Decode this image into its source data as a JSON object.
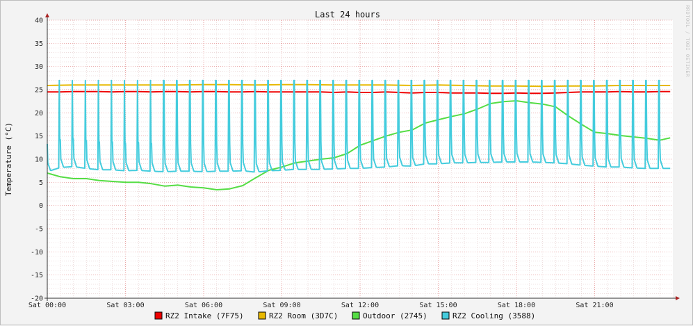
{
  "chart_data": {
    "type": "line",
    "title": "Last 24 hours",
    "ylabel": "Temperature (°C)",
    "xlabel": "",
    "watermark": "RRDTOOL / TOBI OETIKER",
    "ylim": [
      -20,
      40
    ],
    "yticks": [
      40,
      35,
      30,
      25,
      20,
      15,
      10,
      5,
      0,
      -5,
      -10,
      -15,
      -20
    ],
    "xlim_hours": [
      0,
      24
    ],
    "xticks": [
      {
        "hour": 0,
        "label": "Sat 00:00"
      },
      {
        "hour": 3,
        "label": "Sat 03:00"
      },
      {
        "hour": 6,
        "label": "Sat 06:00"
      },
      {
        "hour": 9,
        "label": "Sat 09:00"
      },
      {
        "hour": 12,
        "label": "Sat 12:00"
      },
      {
        "hour": 15,
        "label": "Sat 15:00"
      },
      {
        "hour": 18,
        "label": "Sat 18:00"
      },
      {
        "hour": 21,
        "label": "Sat 21:00"
      }
    ],
    "grid": true,
    "legend_position": "bottom",
    "series": [
      {
        "name": "RZ2 Intake (7F75)",
        "color": "#ee0000",
        "x": [
          0.0,
          0.5,
          1.0,
          1.5,
          2.0,
          2.5,
          3.0,
          3.5,
          4.0,
          4.5,
          5.0,
          5.5,
          6.0,
          6.5,
          7.0,
          7.5,
          8.0,
          8.5,
          9.0,
          9.5,
          10.0,
          10.5,
          11.0,
          11.5,
          12.0,
          12.5,
          13.0,
          13.5,
          14.0,
          14.5,
          15.0,
          15.5,
          16.0,
          16.5,
          17.0,
          17.5,
          18.0,
          18.5,
          19.0,
          19.5,
          20.0,
          20.5,
          21.0,
          21.5,
          22.0,
          22.5,
          23.0,
          23.5,
          23.9
        ],
        "y": [
          24.5,
          24.5,
          24.6,
          24.6,
          24.6,
          24.5,
          24.6,
          24.6,
          24.5,
          24.6,
          24.6,
          24.5,
          24.6,
          24.6,
          24.5,
          24.5,
          24.6,
          24.5,
          24.5,
          24.5,
          24.5,
          24.5,
          24.4,
          24.5,
          24.4,
          24.4,
          24.5,
          24.4,
          24.3,
          24.4,
          24.4,
          24.3,
          24.3,
          24.3,
          24.2,
          24.2,
          24.3,
          24.2,
          24.2,
          24.3,
          24.4,
          24.5,
          24.5,
          24.5,
          24.6,
          24.5,
          24.5,
          24.6,
          24.6
        ]
      },
      {
        "name": "RZ2 Room (3D7C)",
        "color": "#e8b800",
        "x": [
          0.0,
          1.0,
          2.0,
          3.0,
          4.0,
          5.0,
          6.0,
          7.0,
          8.0,
          9.0,
          10.0,
          11.0,
          12.0,
          13.0,
          14.0,
          15.0,
          16.0,
          17.0,
          18.0,
          19.0,
          20.0,
          21.0,
          22.0,
          23.0,
          23.9
        ],
        "y": [
          25.9,
          26.0,
          26.0,
          26.0,
          26.0,
          26.0,
          26.1,
          26.1,
          26.0,
          26.1,
          26.1,
          26.0,
          26.0,
          26.0,
          25.9,
          26.0,
          25.9,
          25.8,
          25.8,
          25.7,
          25.8,
          25.8,
          25.9,
          25.9,
          25.9
        ]
      },
      {
        "name": "Outdoor (2745)",
        "color": "#55dd44",
        "x": [
          0.0,
          0.5,
          1.0,
          1.5,
          2.0,
          2.5,
          3.0,
          3.5,
          4.0,
          4.5,
          5.0,
          5.5,
          6.0,
          6.5,
          7.0,
          7.5,
          8.0,
          8.5,
          9.0,
          9.5,
          10.0,
          10.5,
          11.0,
          11.5,
          12.0,
          12.5,
          13.0,
          13.5,
          14.0,
          14.5,
          15.0,
          15.5,
          16.0,
          16.5,
          17.0,
          17.5,
          18.0,
          18.5,
          19.0,
          19.5,
          20.0,
          20.5,
          21.0,
          21.5,
          22.0,
          22.5,
          23.0,
          23.5,
          23.9
        ],
        "y": [
          7.0,
          6.2,
          5.8,
          5.8,
          5.4,
          5.2,
          5.0,
          5.0,
          4.7,
          4.2,
          4.4,
          4.0,
          3.8,
          3.4,
          3.6,
          4.3,
          6.0,
          7.6,
          8.3,
          9.2,
          9.6,
          10.0,
          10.3,
          11.2,
          13.0,
          14.0,
          15.0,
          15.8,
          16.3,
          17.8,
          18.5,
          19.2,
          19.8,
          20.8,
          22.0,
          22.4,
          22.6,
          22.2,
          21.9,
          21.3,
          19.3,
          17.5,
          15.8,
          15.5,
          15.1,
          14.8,
          14.5,
          14.1,
          14.6
        ]
      },
      {
        "name": "RZ2 Cooling (3588)",
        "color": "#44ccdd",
        "x": [
          0.0,
          0.5,
          1.0,
          1.5,
          2.0,
          2.5,
          3.0,
          3.5,
          4.0,
          4.5,
          5.0,
          5.5,
          6.0,
          6.5,
          7.0,
          7.5,
          8.0,
          8.5,
          9.0,
          9.5,
          10.0,
          10.5,
          11.0,
          11.5,
          12.0,
          12.5,
          13.0,
          13.5,
          14.0,
          14.5,
          15.0,
          15.5,
          16.0,
          16.5,
          17.0,
          17.5,
          18.0,
          18.5,
          19.0,
          19.5,
          20.0,
          20.5,
          21.0,
          21.5,
          22.0,
          22.5,
          23.0,
          23.5,
          23.9
        ],
        "y": [
          7.3,
          8.2,
          8.4,
          8.0,
          7.7,
          7.7,
          7.5,
          7.6,
          7.4,
          7.3,
          7.4,
          7.4,
          7.3,
          7.4,
          7.4,
          7.5,
          7.2,
          7.5,
          7.6,
          7.8,
          7.8,
          7.8,
          7.9,
          8.0,
          8.0,
          8.2,
          8.3,
          8.6,
          8.5,
          9.0,
          9.0,
          9.2,
          9.2,
          9.3,
          9.3,
          9.4,
          9.4,
          9.4,
          9.3,
          9.2,
          9.0,
          8.7,
          8.5,
          8.3,
          8.3,
          8.1,
          8.0,
          8.0,
          8.0
        ],
        "spikes_to": 27.0
      }
    ]
  }
}
